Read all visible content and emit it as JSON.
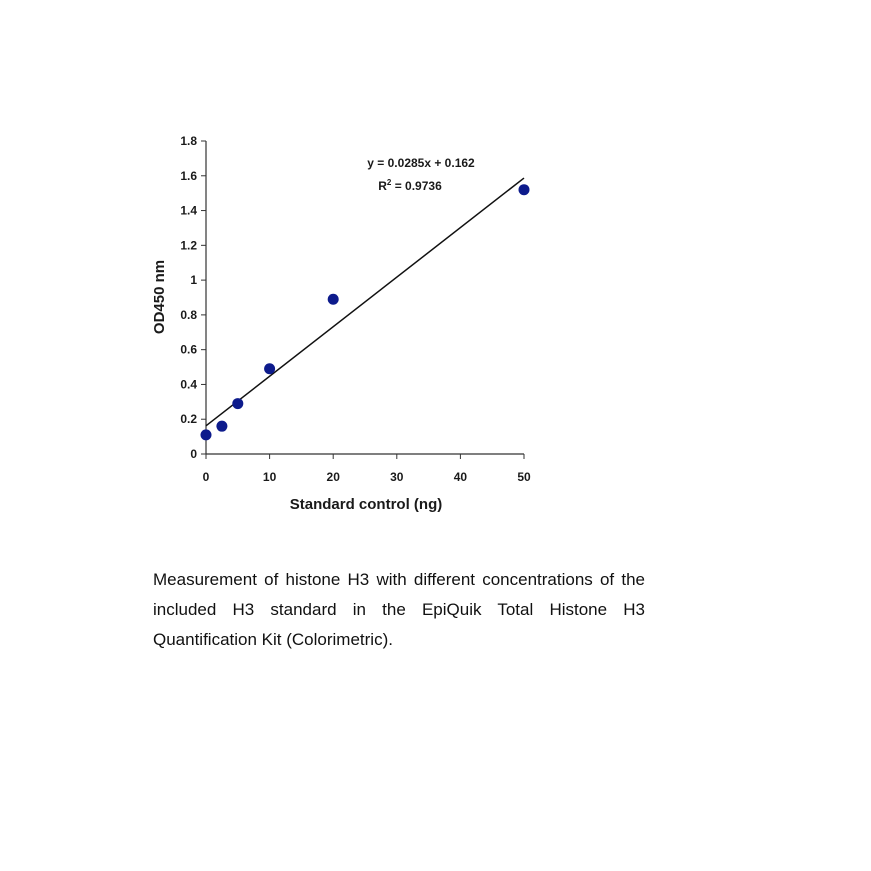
{
  "chart_data": {
    "type": "scatter",
    "xlabel": "Standard control (ng)",
    "ylabel": "OD450 nm",
    "xlim": [
      0,
      50
    ],
    "ylim": [
      0,
      1.8
    ],
    "x_ticks": [
      0,
      10,
      20,
      30,
      40,
      50
    ],
    "y_ticks": [
      0,
      0.2,
      0.4,
      0.6,
      0.8,
      1,
      1.2,
      1.4,
      1.6,
      1.8
    ],
    "y_tick_labels": [
      "0",
      "0.2",
      "0.4",
      "0.6",
      "0.8",
      "1",
      "1.2",
      "1.4",
      "1.6",
      "1.8"
    ],
    "points": [
      {
        "x": 0,
        "y": 0.11
      },
      {
        "x": 2.5,
        "y": 0.16
      },
      {
        "x": 5,
        "y": 0.29
      },
      {
        "x": 10,
        "y": 0.49
      },
      {
        "x": 20,
        "y": 0.89
      },
      {
        "x": 50,
        "y": 1.52
      }
    ],
    "trendline": {
      "slope": 0.0285,
      "intercept": 0.162,
      "x_range": [
        0,
        50
      ]
    },
    "equation": "y = 0.0285x + 0.162",
    "r_squared_label": "R",
    "r_squared_sup": "2",
    "r_squared_value": " = 0.9736",
    "marker_color": "#0d1b8c",
    "line_color": "#111111",
    "grid": false,
    "legend": false
  },
  "caption": "Measurement of histone H3 with different concentrations of the included H3 standard in the EpiQuik Total Histone H3 Quantification Kit (Colorimetric)."
}
